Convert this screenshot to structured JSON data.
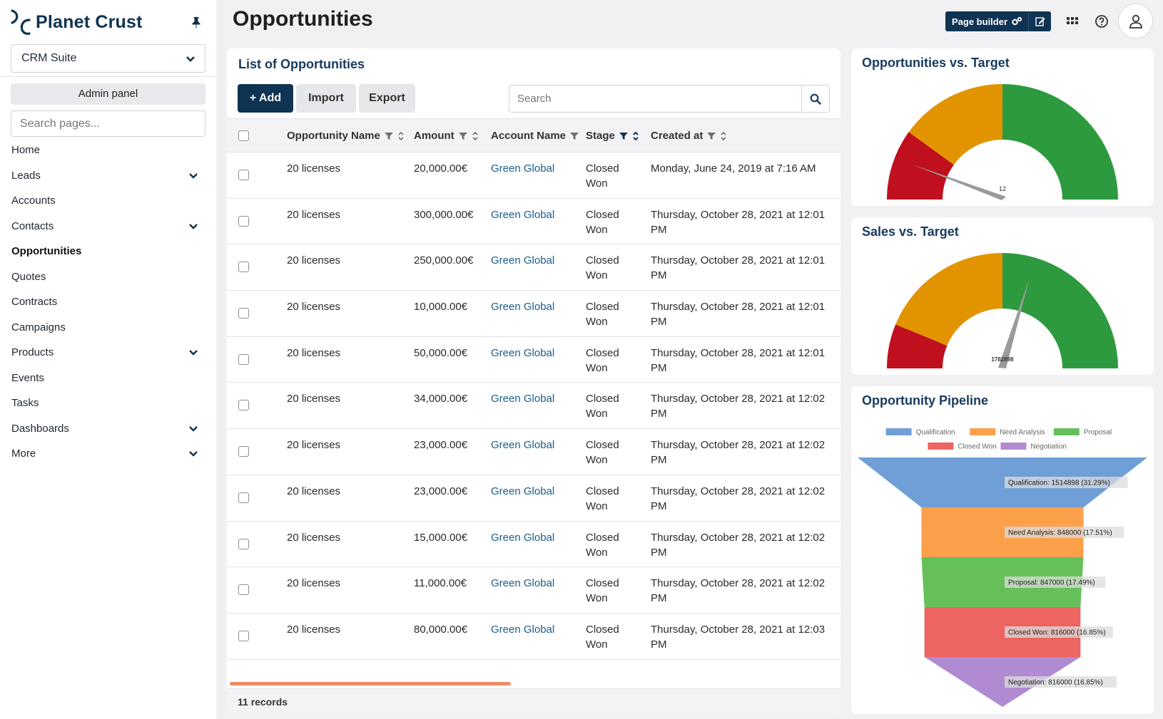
{
  "sidebar": {
    "logo_text": "Planet Crust",
    "suite_select": "CRM Suite",
    "admin_button": "Admin panel",
    "search_placeholder": "Search pages...",
    "items": [
      {
        "label": "Home",
        "has_children": false
      },
      {
        "label": "Leads",
        "has_children": true
      },
      {
        "label": "Accounts",
        "has_children": false
      },
      {
        "label": "Contacts",
        "has_children": true
      },
      {
        "label": "Opportunities",
        "has_children": false,
        "active": true
      },
      {
        "label": "Quotes",
        "has_children": false
      },
      {
        "label": "Contracts",
        "has_children": false
      },
      {
        "label": "Campaigns",
        "has_children": false
      },
      {
        "label": "Products",
        "has_children": true
      },
      {
        "label": "Events",
        "has_children": false
      },
      {
        "label": "Tasks",
        "has_children": false
      },
      {
        "label": "Dashboards",
        "has_children": true
      },
      {
        "label": "More",
        "has_children": true
      }
    ]
  },
  "header": {
    "title": "Opportunities",
    "page_builder_label": "Page builder",
    "icons": [
      "apps-grid-icon",
      "help-icon",
      "user-icon"
    ]
  },
  "list": {
    "title": "List of Opportunities",
    "add_label": "+ Add",
    "import_label": "Import",
    "export_label": "Export",
    "search_placeholder": "Search",
    "columns": [
      "Opportunity Name",
      "Amount",
      "Account Name",
      "Stage",
      "Created at"
    ],
    "rows": [
      {
        "name": "20 licenses",
        "amount": "20,000.00€",
        "account": "Green Global",
        "stage": "Closed Won",
        "created": "Monday, June 24, 2019 at 7:16 AM"
      },
      {
        "name": "20 licenses",
        "amount": "300,000.00€",
        "account": "Green Global",
        "stage": "Closed Won",
        "created": "Thursday, October 28, 2021 at 12:01 PM"
      },
      {
        "name": "20 licenses",
        "amount": "250,000.00€",
        "account": "Green Global",
        "stage": "Closed Won",
        "created": "Thursday, October 28, 2021 at 12:01 PM"
      },
      {
        "name": "20 licenses",
        "amount": "10,000.00€",
        "account": "Green Global",
        "stage": "Closed Won",
        "created": "Thursday, October 28, 2021 at 12:01 PM"
      },
      {
        "name": "20 licenses",
        "amount": "50,000.00€",
        "account": "Green Global",
        "stage": "Closed Won",
        "created": "Thursday, October 28, 2021 at 12:01 PM"
      },
      {
        "name": "20 licenses",
        "amount": "34,000.00€",
        "account": "Green Global",
        "stage": "Closed Won",
        "created": "Thursday, October 28, 2021 at 12:02 PM"
      },
      {
        "name": "20 licenses",
        "amount": "23,000.00€",
        "account": "Green Global",
        "stage": "Closed Won",
        "created": "Thursday, October 28, 2021 at 12:02 PM"
      },
      {
        "name": "20 licenses",
        "amount": "23,000.00€",
        "account": "Green Global",
        "stage": "Closed Won",
        "created": "Thursday, October 28, 2021 at 12:02 PM"
      },
      {
        "name": "20 licenses",
        "amount": "15,000.00€",
        "account": "Green Global",
        "stage": "Closed Won",
        "created": "Thursday, October 28, 2021 at 12:02 PM"
      },
      {
        "name": "20 licenses",
        "amount": "11,000.00€",
        "account": "Green Global",
        "stage": "Closed Won",
        "created": "Thursday, October 28, 2021 at 12:02 PM"
      },
      {
        "name": "20 licenses",
        "amount": "80,000.00€",
        "account": "Green Global",
        "stage": "Closed Won",
        "created": "Thursday, October 28, 2021 at 12:03 PM"
      }
    ],
    "records_label": "11 records"
  },
  "colors": {
    "primary": "#0f3352",
    "link": "#1a5c8a",
    "gauge_red": "#c0101e",
    "gauge_orange": "#e29400",
    "gauge_green": "#2e9a3f"
  },
  "chart_data": [
    {
      "type": "gauge",
      "title": "Opportunities vs. Target",
      "value": 12,
      "value_label": "12"
    },
    {
      "type": "gauge",
      "title": "Sales vs. Target",
      "value": 1782898,
      "value_label": "1782898"
    },
    {
      "type": "funnel",
      "title": "Opportunity Pipeline",
      "legend": [
        "Qualification",
        "Need Analysis",
        "Proposal",
        "Closed Won",
        "Negotiation"
      ],
      "series_colors": [
        "#6f9fd6",
        "#fca04c",
        "#66c05a",
        "#ec6560",
        "#b08bd2"
      ],
      "stages": [
        {
          "name": "Qualification",
          "value": 1514898,
          "label": "Qualification: 1514898 (31.29%)"
        },
        {
          "name": "Need Analysis",
          "value": 848000,
          "label": "Need Analysis: 848000 (17.51%)"
        },
        {
          "name": "Proposal",
          "value": 847000,
          "label": "Proposal: 847000 (17.49%)"
        },
        {
          "name": "Closed Won",
          "value": 816000,
          "label": "Closed Won: 816000 (16.85%)"
        },
        {
          "name": "Negotiation",
          "value": 816000,
          "label": "Negotiation: 816000 (16.85%)"
        }
      ]
    }
  ]
}
